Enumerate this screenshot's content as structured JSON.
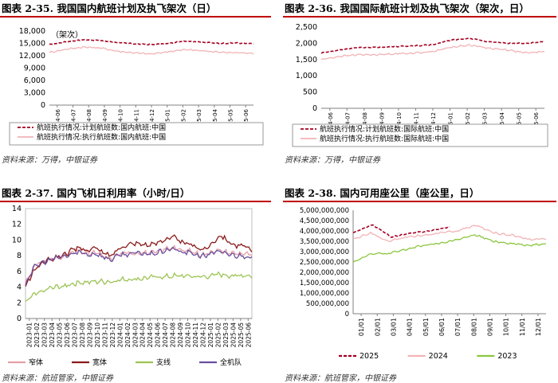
{
  "chart_data": [
    {
      "id": "c1",
      "type": "line",
      "title": "图表 2-35. 我国国内航班计划及执飞架次（日）",
      "subtitle": "（架次）",
      "xlabel": "",
      "ylabel": "",
      "ylim": [
        0,
        18000
      ],
      "yticks": [
        "0",
        "3,000",
        "6,000",
        "9,000",
        "12,000",
        "15,000",
        "18,000"
      ],
      "ytick_values": [
        0,
        3000,
        6000,
        9000,
        12000,
        15000,
        18000
      ],
      "xticks": [
        "2024-06",
        "2024-07",
        "2024-08",
        "2024-09",
        "2024-10",
        "2024-11",
        "2024-12",
        "2025-01",
        "2025-02",
        "2025-03",
        "2025-04",
        "2025-05",
        "2025-06"
      ],
      "grid": false,
      "legend_position": "bottom",
      "series": [
        {
          "name": "航班执行情况:计划航班数:国内航班:中国",
          "color": "#a50021",
          "style": "dashed",
          "values": [
            14700,
            15400,
            15900,
            15700,
            15200,
            14900,
            14700,
            15000,
            15600,
            15300,
            15000,
            15100,
            14900
          ]
        },
        {
          "name": "航班执行情况:执行航班数:国内航班:中国",
          "color": "#f2b3b6",
          "style": "solid",
          "values": [
            12800,
            13600,
            14100,
            13900,
            13100,
            12700,
            12400,
            13000,
            13500,
            13200,
            12900,
            12700,
            12600
          ]
        }
      ],
      "source": "资料来源：万得，中银证券"
    },
    {
      "id": "c2",
      "type": "line",
      "title": "图表 2-36. 我国国际航班计划及执飞架次（架次，日）",
      "xlabel": "",
      "ylabel": "",
      "ylim": [
        0,
        2500
      ],
      "yticks": [
        "0",
        "500",
        "1,000",
        "1,500",
        "2,000",
        "2,500"
      ],
      "ytick_values": [
        0,
        500,
        1000,
        1500,
        2000,
        2500
      ],
      "xticks": [
        "2024-06",
        "2024-07",
        "2024-08",
        "2024-09",
        "2024-10",
        "2024-11",
        "2024-12",
        "2025-01",
        "2025-02",
        "2025-03",
        "2025-04",
        "2025-05",
        "2025-06"
      ],
      "grid": false,
      "legend_position": "bottom",
      "series": [
        {
          "name": "航班执行情况:计划航班数:国际航班:中国",
          "color": "#a50021",
          "style": "dashed",
          "values": [
            1700,
            1800,
            1870,
            1880,
            1900,
            1920,
            1960,
            2100,
            2150,
            2050,
            2000,
            2000,
            2050
          ]
        },
        {
          "name": "航班执行情况:执行航班数:国际航班:中国",
          "color": "#f2b3b6",
          "style": "solid",
          "values": [
            1500,
            1600,
            1650,
            1650,
            1680,
            1700,
            1750,
            1880,
            1950,
            1850,
            1800,
            1700,
            1750
          ]
        }
      ],
      "source": "资料来源：万得，中银证券"
    },
    {
      "id": "c3",
      "type": "line",
      "title": "图表 2-37. 国内飞机日利用率（小时/日）",
      "xlabel": "",
      "ylabel": "",
      "ylim": [
        0,
        14
      ],
      "yticks": [
        "0",
        "2",
        "4",
        "6",
        "8",
        "10",
        "12",
        "14"
      ],
      "ytick_values": [
        0,
        2,
        4,
        6,
        8,
        10,
        12,
        14
      ],
      "xticks": [
        "2023-01",
        "2023-02",
        "2023-03",
        "2023-04",
        "2023-05",
        "2023-06",
        "2023-07",
        "2023-08",
        "2023-09",
        "2023-10",
        "2023-11",
        "2023-12",
        "2024-01",
        "2024-02",
        "2024-03",
        "2024-04",
        "2024-05",
        "2024-06",
        "2024-07",
        "2024-08",
        "2024-09",
        "2024-10",
        "2024-11",
        "2024-12",
        "2025-01",
        "2025-02",
        "2025-03",
        "2025-04",
        "2025-05",
        "2025-06"
      ],
      "grid": false,
      "legend_position": "bottom",
      "series": [
        {
          "name": "窄体",
          "color": "#e6a0a6",
          "style": "solid",
          "values": [
            4.5,
            6.5,
            7.2,
            7.5,
            7.8,
            8.0,
            8.3,
            8.6,
            8.2,
            8.4,
            7.9,
            7.6,
            8.2,
            8.3,
            8.4,
            8.4,
            8.3,
            8.5,
            8.9,
            9.1,
            8.6,
            8.6,
            8.3,
            8.1,
            8.7,
            8.6,
            8.4,
            8.3,
            8.3,
            8.0
          ]
        },
        {
          "name": "宽体",
          "color": "#8b1a1a",
          "style": "solid",
          "values": [
            4.0,
            6.0,
            7.0,
            7.5,
            7.8,
            8.2,
            8.7,
            9.0,
            8.7,
            9.0,
            8.3,
            8.0,
            9.0,
            9.4,
            9.6,
            9.5,
            9.3,
            9.7,
            10.2,
            10.4,
            9.6,
            9.5,
            9.0,
            8.8,
            9.7,
            10.7,
            9.8,
            9.3,
            9.2,
            8.6
          ]
        },
        {
          "name": "支线",
          "color": "#9dc455",
          "style": "solid",
          "values": [
            2.0,
            3.0,
            3.5,
            3.8,
            4.0,
            4.2,
            4.4,
            4.6,
            4.6,
            4.7,
            4.7,
            4.7,
            4.9,
            5.0,
            5.0,
            5.1,
            5.2,
            5.3,
            5.3,
            5.4,
            5.4,
            5.4,
            5.3,
            5.3,
            5.5,
            5.6,
            5.5,
            5.5,
            5.5,
            5.4
          ]
        },
        {
          "name": "全机队",
          "color": "#6a4fa0",
          "style": "solid",
          "values": [
            4.4,
            6.4,
            7.1,
            7.4,
            7.7,
            7.9,
            8.2,
            8.5,
            8.1,
            8.3,
            7.8,
            7.5,
            8.1,
            8.2,
            8.3,
            8.3,
            8.2,
            8.4,
            8.7,
            8.9,
            8.4,
            8.4,
            8.1,
            7.9,
            8.5,
            8.4,
            8.2,
            8.0,
            8.0,
            7.8
          ]
        }
      ],
      "source": "资料来源：航班管家，中银证券"
    },
    {
      "id": "c4",
      "type": "line",
      "title": "图表 2-38. 国内可用座公里（座公里，日）",
      "xlabel": "",
      "ylabel": "",
      "ylim": [
        0,
        5000000000
      ],
      "yticks": [
        "0",
        "500,000,000",
        "1,000,000,000",
        "1,500,000,000",
        "2,000,000,000",
        "2,500,000,000",
        "3,000,000,000",
        "3,500,000,000",
        "4,000,000,000",
        "4,500,000,000",
        "5,000,000,000"
      ],
      "ytick_values": [
        0,
        500000000,
        1000000000,
        1500000000,
        2000000000,
        2500000000,
        3000000000,
        3500000000,
        4000000000,
        4500000000,
        5000000000
      ],
      "xticks": [
        "01/01",
        "02/01",
        "03/01",
        "04/01",
        "05/01",
        "06/01",
        "07/01",
        "08/01",
        "09/01",
        "10/01",
        "11/01",
        "12/01"
      ],
      "grid": false,
      "legend_position": "bottom",
      "series": [
        {
          "name": "2025",
          "color": "#a50021",
          "style": "dashed",
          "values": [
            3900000000,
            4300000000,
            3700000000,
            3900000000,
            4000000000,
            4200000000
          ]
        },
        {
          "name": "2024",
          "color": "#f2b3b6",
          "style": "solid",
          "values": [
            3600000000,
            3900000000,
            3500000000,
            3700000000,
            3800000000,
            3900000000,
            4000000000,
            4300000000,
            3900000000,
            3800000000,
            3600000000,
            3600000000
          ]
        },
        {
          "name": "2023",
          "color": "#8cc63f",
          "style": "solid",
          "values": [
            2500000000,
            2900000000,
            2900000000,
            3100000000,
            3300000000,
            3400000000,
            3600000000,
            3800000000,
            3500000000,
            3400000000,
            3300000000,
            3400000000
          ]
        }
      ],
      "source": "资料来源：航班管家，中银证券"
    }
  ]
}
